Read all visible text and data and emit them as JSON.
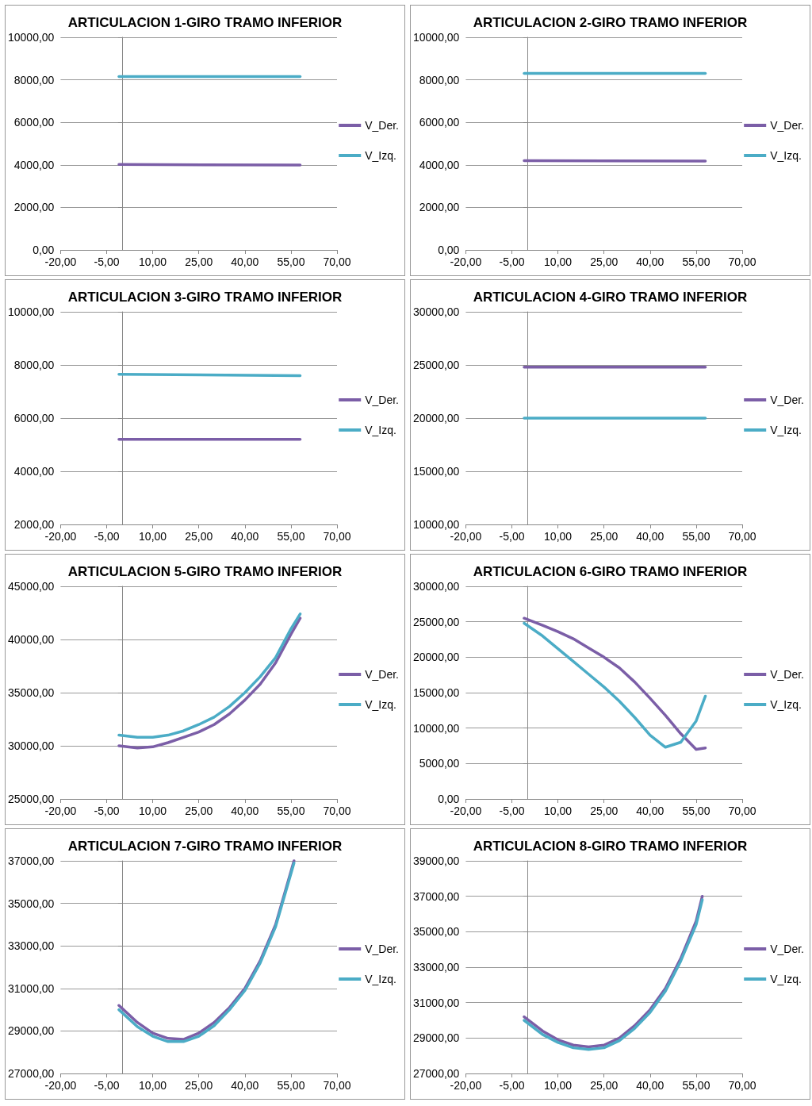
{
  "chart_data": [
    {
      "type": "line",
      "title": "ARTICULACION 1-GIRO TRAMO INFERIOR",
      "x": [
        -1,
        58
      ],
      "series": [
        {
          "name": "V_Der.",
          "color": "#7b5ea7",
          "values": [
            4020,
            3990
          ]
        },
        {
          "name": "V_Izq.",
          "color": "#4bacc6",
          "values": [
            8150,
            8150
          ]
        }
      ],
      "xlim": [
        -20,
        70
      ],
      "xticks": [
        {
          "value": -20,
          "label": "-20,00"
        },
        {
          "value": -5,
          "label": "-5,00"
        },
        {
          "value": 10,
          "label": "10,00"
        },
        {
          "value": 25,
          "label": "25,00"
        },
        {
          "value": 40,
          "label": "40,00"
        },
        {
          "value": 55,
          "label": "55,00"
        },
        {
          "value": 70,
          "label": "70,00"
        }
      ],
      "ylim": [
        0,
        10000
      ],
      "yticks": [
        {
          "value": 0,
          "label": "0,00"
        },
        {
          "value": 2000,
          "label": "2000,00"
        },
        {
          "value": 4000,
          "label": "4000,00"
        },
        {
          "value": 6000,
          "label": "6000,00"
        },
        {
          "value": 8000,
          "label": "8000,00"
        },
        {
          "value": 10000,
          "label": "10000,00"
        }
      ],
      "grid": "y",
      "legend": "right",
      "marker": "none"
    },
    {
      "type": "line",
      "title": "ARTICULACION 2-GIRO TRAMO INFERIOR",
      "x": [
        -1,
        58
      ],
      "series": [
        {
          "name": "V_Der.",
          "color": "#7b5ea7",
          "values": [
            4200,
            4180
          ]
        },
        {
          "name": "V_Izq.",
          "color": "#4bacc6",
          "values": [
            8300,
            8300
          ]
        }
      ],
      "xlim": [
        -20,
        70
      ],
      "xticks": [
        {
          "value": -20,
          "label": "-20,00"
        },
        {
          "value": -5,
          "label": "-5,00"
        },
        {
          "value": 10,
          "label": "10,00"
        },
        {
          "value": 25,
          "label": "25,00"
        },
        {
          "value": 40,
          "label": "40,00"
        },
        {
          "value": 55,
          "label": "55,00"
        },
        {
          "value": 70,
          "label": "70,00"
        }
      ],
      "ylim": [
        0,
        10000
      ],
      "yticks": [
        {
          "value": 0,
          "label": "0,00"
        },
        {
          "value": 2000,
          "label": "2000,00"
        },
        {
          "value": 4000,
          "label": "4000,00"
        },
        {
          "value": 6000,
          "label": "6000,00"
        },
        {
          "value": 8000,
          "label": "8000,00"
        },
        {
          "value": 10000,
          "label": "10000,00"
        }
      ],
      "grid": "y",
      "legend": "right",
      "marker": "none"
    },
    {
      "type": "line",
      "title": "ARTICULACION 3-GIRO TRAMO INFERIOR",
      "x": [
        -1,
        58
      ],
      "series": [
        {
          "name": "V_Der.",
          "color": "#7b5ea7",
          "values": [
            5200,
            5200
          ]
        },
        {
          "name": "V_Izq.",
          "color": "#4bacc6",
          "values": [
            7650,
            7600
          ]
        }
      ],
      "xlim": [
        -20,
        70
      ],
      "xticks": [
        {
          "value": -20,
          "label": "-20,00"
        },
        {
          "value": -5,
          "label": "-5,00"
        },
        {
          "value": 10,
          "label": "10,00"
        },
        {
          "value": 25,
          "label": "25,00"
        },
        {
          "value": 40,
          "label": "40,00"
        },
        {
          "value": 55,
          "label": "55,00"
        },
        {
          "value": 70,
          "label": "70,00"
        }
      ],
      "ylim": [
        2000,
        10000
      ],
      "yticks": [
        {
          "value": 2000,
          "label": "2000,00"
        },
        {
          "value": 4000,
          "label": "4000,00"
        },
        {
          "value": 6000,
          "label": "6000,00"
        },
        {
          "value": 8000,
          "label": "8000,00"
        },
        {
          "value": 10000,
          "label": "10000,00"
        }
      ],
      "grid": "y",
      "legend": "right",
      "marker": "none"
    },
    {
      "type": "line",
      "title": "ARTICULACION 4-GIRO TRAMO INFERIOR",
      "x": [
        -1,
        58
      ],
      "series": [
        {
          "name": "V_Der.",
          "color": "#7b5ea7",
          "values": [
            24800,
            24800
          ]
        },
        {
          "name": "V_Izq.",
          "color": "#4bacc6",
          "values": [
            20000,
            20000
          ]
        }
      ],
      "xlim": [
        -20,
        70
      ],
      "xticks": [
        {
          "value": -20,
          "label": "-20,00"
        },
        {
          "value": -5,
          "label": "-5,00"
        },
        {
          "value": 10,
          "label": "10,00"
        },
        {
          "value": 25,
          "label": "25,00"
        },
        {
          "value": 40,
          "label": "40,00"
        },
        {
          "value": 55,
          "label": "55,00"
        },
        {
          "value": 70,
          "label": "70,00"
        }
      ],
      "ylim": [
        10000,
        30000
      ],
      "yticks": [
        {
          "value": 10000,
          "label": "10000,00"
        },
        {
          "value": 15000,
          "label": "15000,00"
        },
        {
          "value": 20000,
          "label": "20000,00"
        },
        {
          "value": 25000,
          "label": "25000,00"
        },
        {
          "value": 30000,
          "label": "30000,00"
        }
      ],
      "grid": "y",
      "legend": "right",
      "marker": "none"
    },
    {
      "type": "line",
      "title": "ARTICULACION 5-GIRO TRAMO INFERIOR",
      "x": [
        -1,
        5,
        10,
        15,
        20,
        25,
        30,
        35,
        40,
        45,
        50,
        55,
        58
      ],
      "series": [
        {
          "name": "V_Der.",
          "color": "#7b5ea7",
          "values": [
            30000,
            29800,
            29900,
            30300,
            30800,
            31300,
            32000,
            33000,
            34300,
            35800,
            37800,
            40500,
            42000
          ]
        },
        {
          "name": "V_Izq.",
          "color": "#4bacc6",
          "values": [
            31000,
            30800,
            30800,
            31000,
            31400,
            32000,
            32700,
            33700,
            35000,
            36500,
            38300,
            41000,
            42400
          ]
        }
      ],
      "xlim": [
        -20,
        70
      ],
      "xticks": [
        {
          "value": -20,
          "label": "-20,00"
        },
        {
          "value": -5,
          "label": "-5,00"
        },
        {
          "value": 10,
          "label": "10,00"
        },
        {
          "value": 25,
          "label": "25,00"
        },
        {
          "value": 40,
          "label": "40,00"
        },
        {
          "value": 55,
          "label": "55,00"
        },
        {
          "value": 70,
          "label": "70,00"
        }
      ],
      "ylim": [
        25000,
        45000
      ],
      "yticks": [
        {
          "value": 25000,
          "label": "25000,00"
        },
        {
          "value": 30000,
          "label": "30000,00"
        },
        {
          "value": 35000,
          "label": "35000,00"
        },
        {
          "value": 40000,
          "label": "40000,00"
        },
        {
          "value": 45000,
          "label": "45000,00"
        }
      ],
      "grid": "y",
      "legend": "right",
      "marker": "none"
    },
    {
      "type": "line",
      "title": "ARTICULACION 6-GIRO TRAMO INFERIOR",
      "x": [
        -1,
        5,
        10,
        15,
        20,
        25,
        30,
        35,
        40,
        45,
        50,
        55,
        58
      ],
      "series": [
        {
          "name": "V_Der.",
          "color": "#7b5ea7",
          "values": [
            25500,
            24500,
            23600,
            22600,
            21300,
            20000,
            18500,
            16500,
            14200,
            11800,
            9200,
            7000,
            7200
          ]
        },
        {
          "name": "V_Izq.",
          "color": "#4bacc6",
          "values": [
            24800,
            23000,
            21200,
            19400,
            17600,
            15800,
            13800,
            11500,
            9000,
            7300,
            8000,
            11000,
            14500
          ]
        }
      ],
      "xlim": [
        -20,
        70
      ],
      "xticks": [
        {
          "value": -20,
          "label": "-20,00"
        },
        {
          "value": -5,
          "label": "-5,00"
        },
        {
          "value": 10,
          "label": "10,00"
        },
        {
          "value": 25,
          "label": "25,00"
        },
        {
          "value": 40,
          "label": "40,00"
        },
        {
          "value": 55,
          "label": "55,00"
        },
        {
          "value": 70,
          "label": "70,00"
        }
      ],
      "ylim": [
        0,
        30000
      ],
      "yticks": [
        {
          "value": 0,
          "label": "0,00"
        },
        {
          "value": 5000,
          "label": "5000,00"
        },
        {
          "value": 10000,
          "label": "10000,00"
        },
        {
          "value": 15000,
          "label": "15000,00"
        },
        {
          "value": 20000,
          "label": "20000,00"
        },
        {
          "value": 25000,
          "label": "25000,00"
        },
        {
          "value": 30000,
          "label": "30000,00"
        }
      ],
      "grid": "y",
      "legend": "right",
      "marker": "none"
    },
    {
      "type": "line",
      "title": "ARTICULACION 7-GIRO TRAMO INFERIOR",
      "x": [
        -1,
        5,
        10,
        15,
        20,
        25,
        30,
        35,
        40,
        45,
        50,
        56
      ],
      "series": [
        {
          "name": "V_Der.",
          "color": "#7b5ea7",
          "values": [
            30200,
            29400,
            28900,
            28650,
            28600,
            28900,
            29400,
            30100,
            31000,
            32300,
            34000,
            37000
          ]
        },
        {
          "name": "V_Izq.",
          "color": "#4bacc6",
          "values": [
            30000,
            29200,
            28750,
            28500,
            28500,
            28750,
            29250,
            30000,
            30900,
            32200,
            33900,
            36900
          ]
        }
      ],
      "xlim": [
        -20,
        70
      ],
      "xticks": [
        {
          "value": -20,
          "label": "-20,00"
        },
        {
          "value": -5,
          "label": "-5,00"
        },
        {
          "value": 10,
          "label": "10,00"
        },
        {
          "value": 25,
          "label": "25,00"
        },
        {
          "value": 40,
          "label": "40,00"
        },
        {
          "value": 55,
          "label": "55,00"
        },
        {
          "value": 70,
          "label": "70,00"
        }
      ],
      "ylim": [
        27000,
        37000
      ],
      "yticks": [
        {
          "value": 27000,
          "label": "27000,00"
        },
        {
          "value": 29000,
          "label": "29000,00"
        },
        {
          "value": 31000,
          "label": "31000,00"
        },
        {
          "value": 33000,
          "label": "33000,00"
        },
        {
          "value": 35000,
          "label": "35000,00"
        },
        {
          "value": 37000,
          "label": "37000,00"
        }
      ],
      "grid": "y",
      "legend": "right",
      "marker": "none"
    },
    {
      "type": "line",
      "title": "ARTICULACION 8-GIRO TRAMO INFERIOR",
      "x": [
        -1,
        5,
        10,
        15,
        20,
        25,
        30,
        35,
        40,
        45,
        50,
        55,
        57
      ],
      "series": [
        {
          "name": "V_Der.",
          "color": "#7b5ea7",
          "values": [
            30200,
            29400,
            28900,
            28600,
            28500,
            28600,
            29000,
            29700,
            30600,
            31800,
            33500,
            35600,
            37000
          ]
        },
        {
          "name": "V_Izq.",
          "color": "#4bacc6",
          "values": [
            30000,
            29200,
            28750,
            28450,
            28350,
            28450,
            28850,
            29550,
            30450,
            31650,
            33350,
            35400,
            36800
          ]
        }
      ],
      "xlim": [
        -20,
        70
      ],
      "xticks": [
        {
          "value": -20,
          "label": "-20,00"
        },
        {
          "value": -5,
          "label": "-5,00"
        },
        {
          "value": 10,
          "label": "10,00"
        },
        {
          "value": 25,
          "label": "25,00"
        },
        {
          "value": 40,
          "label": "40,00"
        },
        {
          "value": 55,
          "label": "55,00"
        },
        {
          "value": 70,
          "label": "70,00"
        }
      ],
      "ylim": [
        27000,
        39000
      ],
      "yticks": [
        {
          "value": 27000,
          "label": "27000,00"
        },
        {
          "value": 29000,
          "label": "29000,00"
        },
        {
          "value": 31000,
          "label": "31000,00"
        },
        {
          "value": 33000,
          "label": "33000,00"
        },
        {
          "value": 35000,
          "label": "35000,00"
        },
        {
          "value": 37000,
          "label": "37000,00"
        },
        {
          "value": 39000,
          "label": "39000,00"
        }
      ],
      "grid": "y",
      "legend": "right",
      "marker": "none"
    }
  ]
}
